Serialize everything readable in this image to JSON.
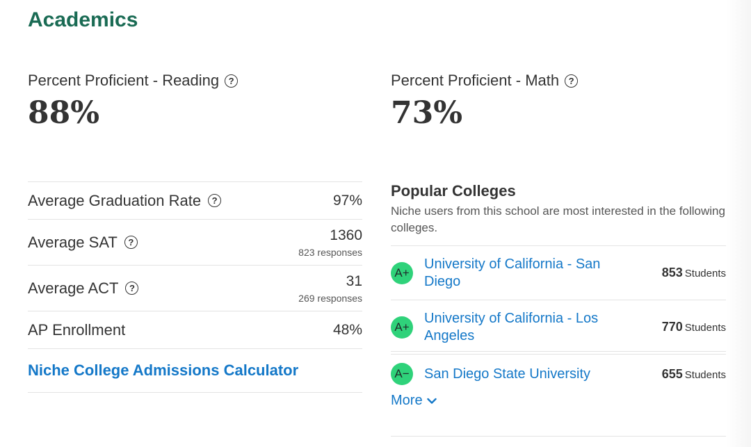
{
  "section": {
    "title": "Academics"
  },
  "proficiency": {
    "reading": {
      "label": "Percent Proficient - Reading",
      "value": "88%"
    },
    "math": {
      "label": "Percent Proficient - Math",
      "value": "73%"
    }
  },
  "stats": {
    "graduation": {
      "label": "Average Graduation Rate",
      "value": "97%"
    },
    "sat": {
      "label": "Average SAT",
      "value": "1360",
      "responses": "823 responses"
    },
    "act": {
      "label": "Average ACT",
      "value": "31",
      "responses": "269 responses"
    },
    "ap": {
      "label": "AP Enrollment",
      "value": "48%"
    },
    "calculator_link": "Niche College Admissions Calculator"
  },
  "popular_colleges": {
    "title": "Popular Colleges",
    "description": "Niche users from this school are most interested in the following colleges.",
    "items": [
      {
        "grade": "A+",
        "name": "University of California - San Diego",
        "count": "853",
        "unit": "Students"
      },
      {
        "grade": "A+",
        "name": "University of California - Los Angeles",
        "count": "770",
        "unit": "Students"
      },
      {
        "grade": "A−",
        "name": "San Diego State University",
        "count": "655",
        "unit": "Students"
      }
    ],
    "more_label": "More"
  },
  "icons": {
    "help": "?",
    "chevron": "chevron-down-icon"
  },
  "colors": {
    "brand_green": "#1a6b54",
    "link_blue": "#1478c8",
    "grade_green": "#2fd27a"
  }
}
